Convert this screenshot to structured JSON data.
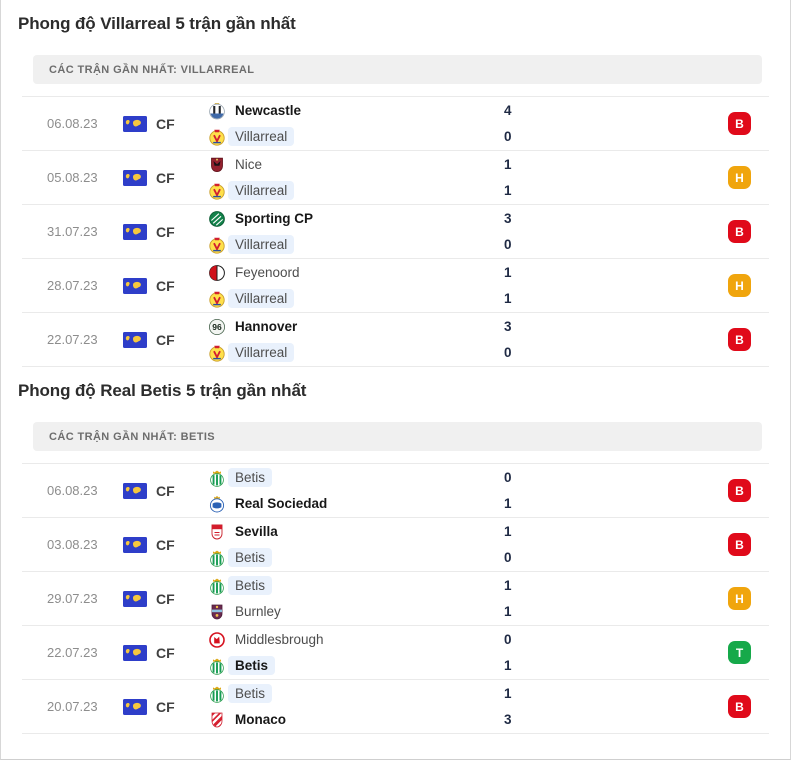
{
  "colors": {
    "badge_loss": "#e00a1a",
    "badge_draw": "#f0a50d",
    "badge_win": "#16a94a",
    "chip_bg": "#e9f1fc",
    "header_bar_bg": "#f0f0f0",
    "row_border": "#eaeaea"
  },
  "sections": [
    {
      "title": "Phong độ Villarreal 5 trận gần nhất",
      "header": "CÁC TRẬN GẦN NHẤT: VILLARREAL",
      "matches": [
        {
          "date": "06.08.23",
          "competition": "CF",
          "competition_flag": "club-friendly-flag",
          "home": {
            "name": "Newcastle",
            "logo": "newcastle",
            "bold": true,
            "highlight": false,
            "score": "4"
          },
          "away": {
            "name": "Villarreal",
            "logo": "villarreal",
            "bold": false,
            "highlight": true,
            "score": "0"
          },
          "result": {
            "label": "B",
            "type": "loss"
          }
        },
        {
          "date": "05.08.23",
          "competition": "CF",
          "competition_flag": "club-friendly-flag",
          "home": {
            "name": "Nice",
            "logo": "nice",
            "bold": false,
            "highlight": false,
            "score": "1"
          },
          "away": {
            "name": "Villarreal",
            "logo": "villarreal",
            "bold": false,
            "highlight": true,
            "score": "1"
          },
          "result": {
            "label": "H",
            "type": "draw"
          }
        },
        {
          "date": "31.07.23",
          "competition": "CF",
          "competition_flag": "club-friendly-flag",
          "home": {
            "name": "Sporting CP",
            "logo": "sporting",
            "bold": true,
            "highlight": false,
            "score": "3"
          },
          "away": {
            "name": "Villarreal",
            "logo": "villarreal",
            "bold": false,
            "highlight": true,
            "score": "0"
          },
          "result": {
            "label": "B",
            "type": "loss"
          }
        },
        {
          "date": "28.07.23",
          "competition": "CF",
          "competition_flag": "club-friendly-flag",
          "home": {
            "name": "Feyenoord",
            "logo": "feyenoord",
            "bold": false,
            "highlight": false,
            "score": "1"
          },
          "away": {
            "name": "Villarreal",
            "logo": "villarreal",
            "bold": false,
            "highlight": true,
            "score": "1"
          },
          "result": {
            "label": "H",
            "type": "draw"
          }
        },
        {
          "date": "22.07.23",
          "competition": "CF",
          "competition_flag": "club-friendly-flag",
          "home": {
            "name": "Hannover",
            "logo": "hannover",
            "bold": true,
            "highlight": false,
            "score": "3"
          },
          "away": {
            "name": "Villarreal",
            "logo": "villarreal",
            "bold": false,
            "highlight": true,
            "score": "0"
          },
          "result": {
            "label": "B",
            "type": "loss"
          }
        }
      ]
    },
    {
      "title": "Phong độ Real Betis 5 trận gần nhất",
      "header": "CÁC TRẬN GẦN NHẤT: BETIS",
      "matches": [
        {
          "date": "06.08.23",
          "competition": "CF",
          "competition_flag": "club-friendly-flag",
          "home": {
            "name": "Betis",
            "logo": "betis",
            "bold": false,
            "highlight": true,
            "score": "0"
          },
          "away": {
            "name": "Real Sociedad",
            "logo": "realsociedad",
            "bold": true,
            "highlight": false,
            "score": "1"
          },
          "result": {
            "label": "B",
            "type": "loss"
          }
        },
        {
          "date": "03.08.23",
          "competition": "CF",
          "competition_flag": "club-friendly-flag",
          "home": {
            "name": "Sevilla",
            "logo": "sevilla",
            "bold": true,
            "highlight": false,
            "score": "1"
          },
          "away": {
            "name": "Betis",
            "logo": "betis",
            "bold": false,
            "highlight": true,
            "score": "0"
          },
          "result": {
            "label": "B",
            "type": "loss"
          }
        },
        {
          "date": "29.07.23",
          "competition": "CF",
          "competition_flag": "club-friendly-flag",
          "home": {
            "name": "Betis",
            "logo": "betis",
            "bold": false,
            "highlight": true,
            "score": "1"
          },
          "away": {
            "name": "Burnley",
            "logo": "burnley",
            "bold": false,
            "highlight": false,
            "score": "1"
          },
          "result": {
            "label": "H",
            "type": "draw"
          }
        },
        {
          "date": "22.07.23",
          "competition": "CF",
          "competition_flag": "club-friendly-flag",
          "home": {
            "name": "Middlesbrough",
            "logo": "middlesbrough",
            "bold": false,
            "highlight": false,
            "score": "0"
          },
          "away": {
            "name": "Betis",
            "logo": "betis",
            "bold": true,
            "highlight": true,
            "score": "1"
          },
          "result": {
            "label": "T",
            "type": "win"
          }
        },
        {
          "date": "20.07.23",
          "competition": "CF",
          "competition_flag": "club-friendly-flag",
          "home": {
            "name": "Betis",
            "logo": "betis",
            "bold": false,
            "highlight": true,
            "score": "1"
          },
          "away": {
            "name": "Monaco",
            "logo": "monaco",
            "bold": true,
            "highlight": false,
            "score": "3"
          },
          "result": {
            "label": "B",
            "type": "loss"
          }
        }
      ]
    }
  ]
}
